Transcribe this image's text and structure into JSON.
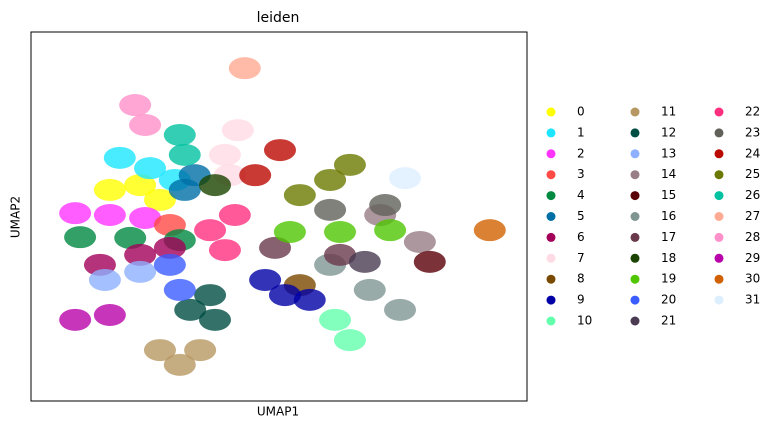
{
  "chart_data": {
    "type": "scatter",
    "title": "leiden",
    "x_label": "UMAP1",
    "y_label": "UMAP2",
    "xlim": [
      0,
      100
    ],
    "ylim": [
      0,
      100
    ],
    "series": [
      {
        "name": "0",
        "color": "#FFFF00",
        "x": [
          15.9,
          22,
          26
        ],
        "y": [
          57.2,
          58.5,
          54.5
        ]
      },
      {
        "name": "1",
        "color": "#1CE6FF",
        "x": [
          17.9,
          24,
          29
        ],
        "y": [
          65.9,
          63.1,
          59.9
        ]
      },
      {
        "name": "2",
        "color": "#FF34FF",
        "x": [
          8.9,
          15.9,
          23
        ],
        "y": [
          50.9,
          50.4,
          49.6
        ]
      },
      {
        "name": "3",
        "color": "#FF4A46",
        "x": [
          28
        ],
        "y": [
          47.7
        ]
      },
      {
        "name": "4",
        "color": "#008941",
        "x": [
          9.9,
          20,
          30
        ],
        "y": [
          44.4,
          44.2,
          43.6
        ]
      },
      {
        "name": "5",
        "color": "#006FA6",
        "x": [
          31,
          33
        ],
        "y": [
          57.2,
          61.2
        ]
      },
      {
        "name": "6",
        "color": "#A30059",
        "x": [
          13.9,
          22,
          28
        ],
        "y": [
          36.9,
          39.6,
          41.5
        ]
      },
      {
        "name": "7",
        "color": "#FFDBE5",
        "x": [
          39.1,
          41.7,
          40.1
        ],
        "y": [
          66.7,
          73.4,
          61.2
        ]
      },
      {
        "name": "8",
        "color": "#7A4900",
        "x": [
          54.2
        ],
        "y": [
          31.4
        ]
      },
      {
        "name": "9",
        "color": "#0000A6",
        "x": [
          47.2,
          51.2,
          56.2
        ],
        "y": [
          32.8,
          28.7,
          27.4
        ]
      },
      {
        "name": "10",
        "color": "#63FFAC",
        "x": [
          61.3,
          64.3
        ],
        "y": [
          22,
          16.5
        ]
      },
      {
        "name": "11",
        "color": "#B79762",
        "x": [
          26,
          30,
          34.1
        ],
        "y": [
          13.8,
          9.8,
          13.8
        ]
      },
      {
        "name": "12",
        "color": "#004D43",
        "x": [
          32.1,
          37.1,
          36.1
        ],
        "y": [
          24.7,
          22,
          28.7
        ]
      },
      {
        "name": "13",
        "color": "#8FB0FF",
        "x": [
          14.9,
          22
        ],
        "y": [
          32.8,
          35
        ]
      },
      {
        "name": "14",
        "color": "#997D87",
        "x": [
          70.4,
          78.4
        ],
        "y": [
          50.4,
          43.1
        ]
      },
      {
        "name": "15",
        "color": "#5A0007",
        "x": [
          80.4
        ],
        "y": [
          37.7
        ]
      },
      {
        "name": "16",
        "color": "#809693",
        "x": [
          60.3,
          68.3,
          74.4
        ],
        "y": [
          36.9,
          30.1,
          24.7
        ]
      },
      {
        "name": "17",
        "color": "#6A3A4C",
        "x": [
          49.2,
          62.3
        ],
        "y": [
          41.5,
          39.6
        ]
      },
      {
        "name": "18",
        "color": "#1B4400",
        "x": [
          37.1
        ],
        "y": [
          58.5
        ]
      },
      {
        "name": "19",
        "color": "#4FC601",
        "x": [
          52.2,
          62.3,
          72.4
        ],
        "y": [
          45.8,
          45.8,
          46.3
        ]
      },
      {
        "name": "20",
        "color": "#3B5DFF",
        "x": [
          28,
          30
        ],
        "y": [
          36.9,
          30.1
        ]
      },
      {
        "name": "21",
        "color": "#4A3B53",
        "x": [
          67.3
        ],
        "y": [
          37.7
        ]
      },
      {
        "name": "22",
        "color": "#FF2F80",
        "x": [
          36.1,
          41.1,
          39.1
        ],
        "y": [
          46.3,
          50.4,
          40.9
        ]
      },
      {
        "name": "23",
        "color": "#61615A",
        "x": [
          60.3,
          71.4
        ],
        "y": [
          51.8,
          53.1
        ]
      },
      {
        "name": "24",
        "color": "#BA0900",
        "x": [
          45.2,
          50.2
        ],
        "y": [
          61.2,
          68
        ]
      },
      {
        "name": "25",
        "color": "#6B7900",
        "x": [
          54.2,
          60.3,
          64.3
        ],
        "y": [
          55.8,
          59.9,
          64
        ]
      },
      {
        "name": "26",
        "color": "#00C2A0",
        "x": [
          30,
          31
        ],
        "y": [
          72.1,
          66.7
        ]
      },
      {
        "name": "27",
        "color": "#FFAA92",
        "x": [
          43.1
        ],
        "y": [
          90.2
        ]
      },
      {
        "name": "28",
        "color": "#FF90C9",
        "x": [
          21,
          23
        ],
        "y": [
          80.2,
          74.8
        ]
      },
      {
        "name": "29",
        "color": "#B903AA",
        "x": [
          8.9,
          15.9
        ],
        "y": [
          22,
          23.3
        ]
      },
      {
        "name": "30",
        "color": "#D16100",
        "x": [
          92.5
        ],
        "y": [
          46.3
        ]
      },
      {
        "name": "31",
        "color": "#DDEFFF",
        "x": [
          75.4
        ],
        "y": [
          60.4
        ]
      }
    ]
  }
}
